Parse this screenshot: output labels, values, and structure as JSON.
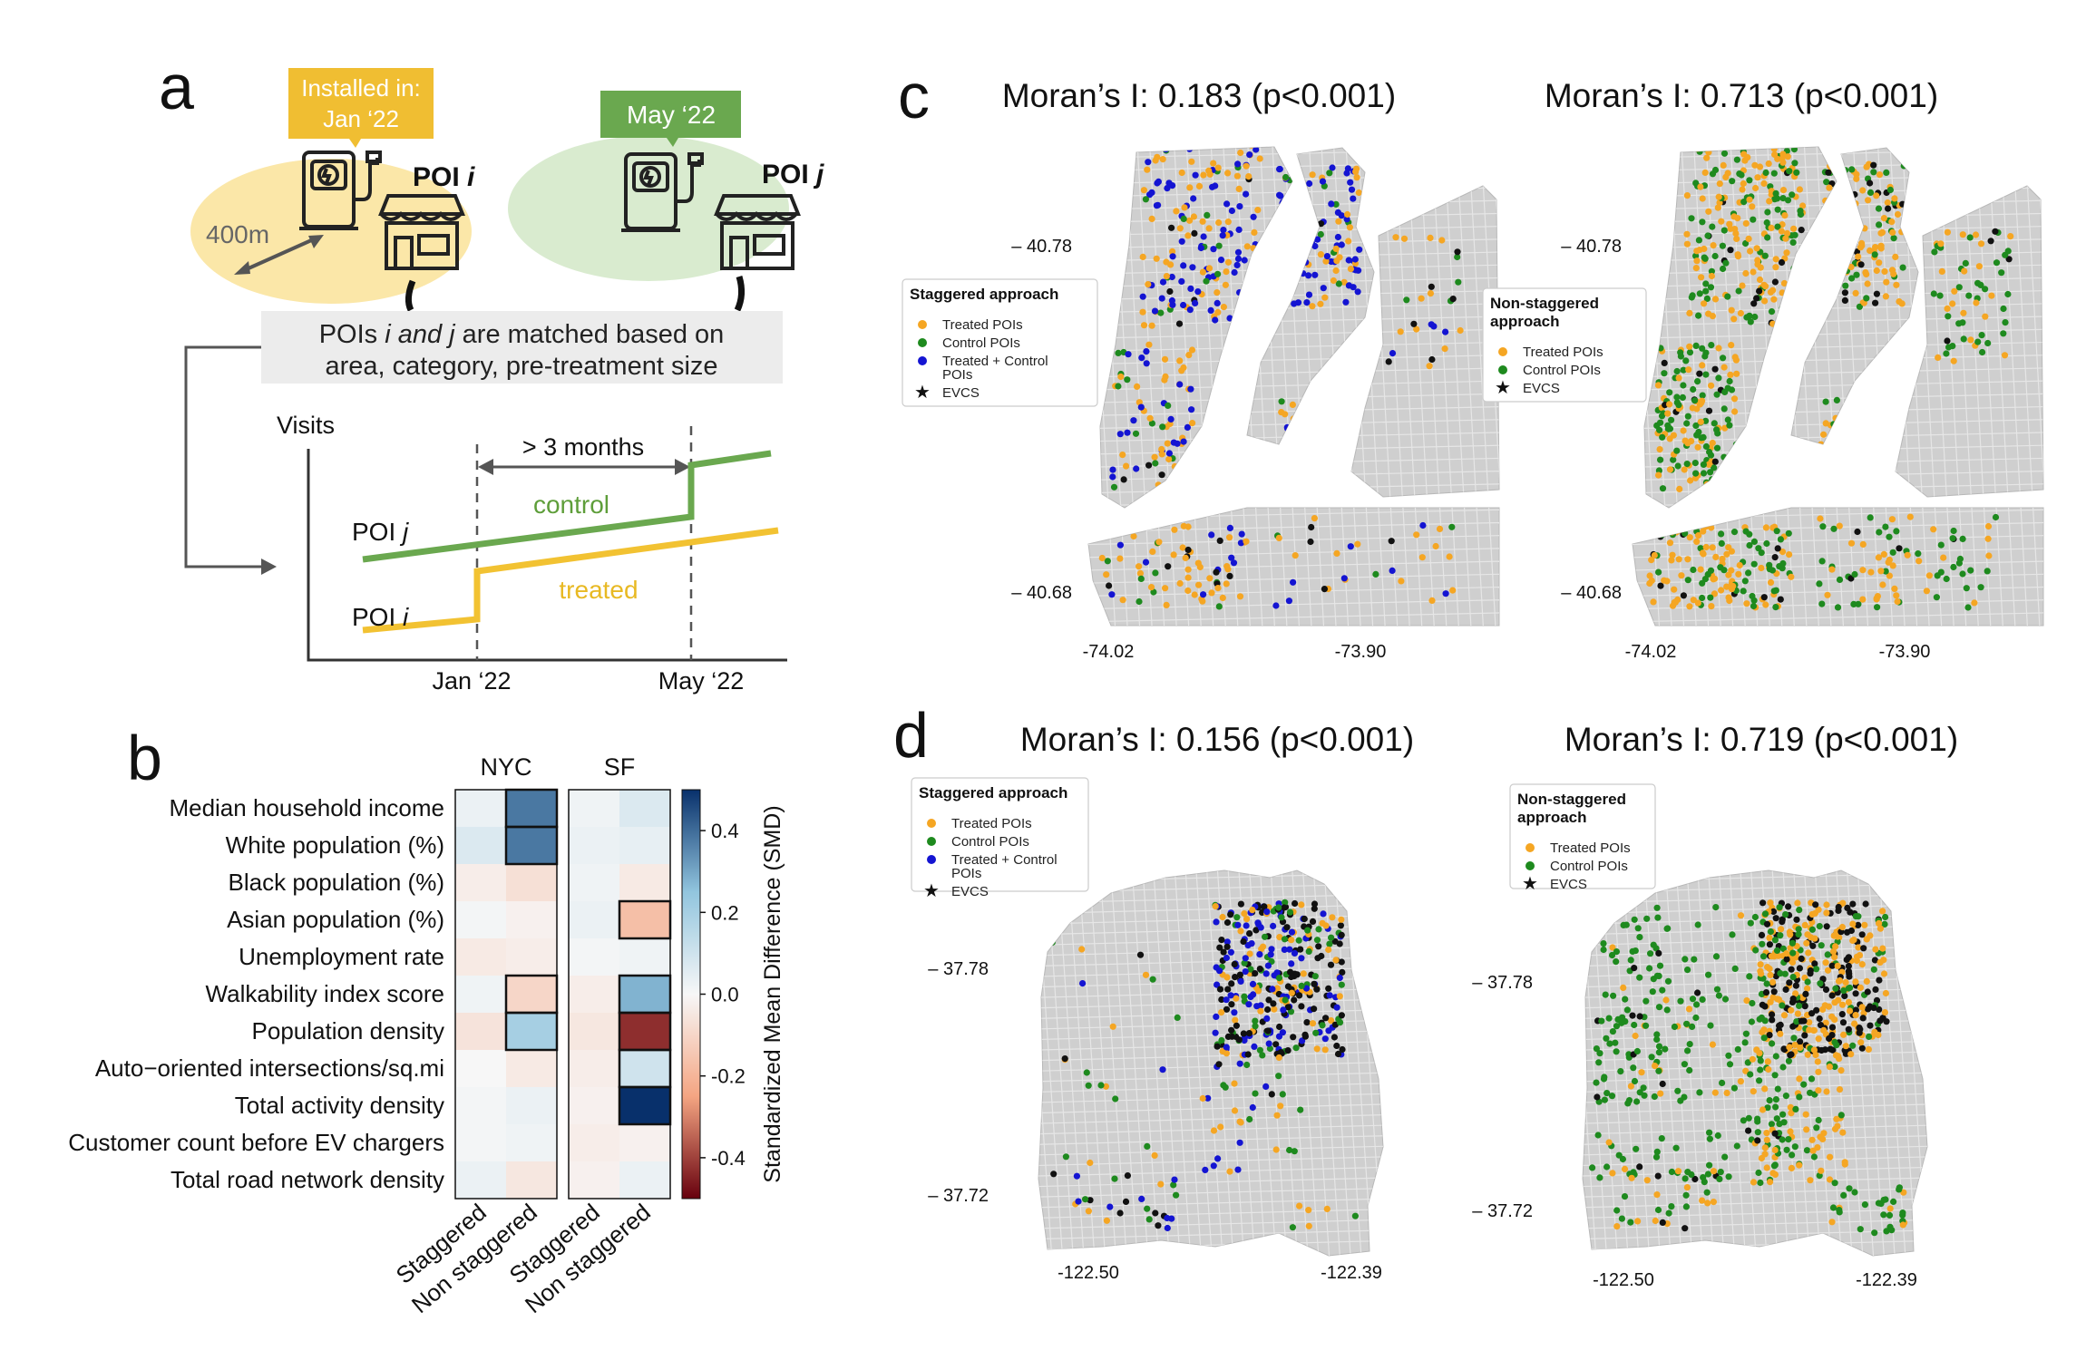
{
  "panel_labels": {
    "a": "a",
    "b": "b",
    "c": "c",
    "d": "d"
  },
  "panel_a": {
    "box1_line1": "Installed in:",
    "box1_line2": "Jan ‘22",
    "box2": "May ‘22",
    "poi_i_main": "POI ",
    "poi_i_var": "i",
    "poi_j_main": "POI ",
    "poi_j_var": "j",
    "distance": "400m",
    "matched_line1_pre": "POIs ",
    "matched_line1_em": "i and j",
    "matched_line1_post": " are matched based on",
    "matched_line2": "area, category, pre-treatment size",
    "y_label": "Visits",
    "gap_label": "> 3 months",
    "control_label": "control",
    "treated_label": "treated",
    "poi_j_line_pre": "POI ",
    "poi_j_line_var": "j",
    "poi_i_line_pre": "POI ",
    "poi_i_line_var": "i",
    "x_tick_1": "Jan ‘22",
    "x_tick_2": "May ‘22",
    "colors": {
      "treated": "#f2c232",
      "control": "#6aa84f",
      "treated_fill": "#fbe7a8",
      "control_fill": "#d9ebcf"
    }
  },
  "chart_data": [
    {
      "type": "heatmap",
      "title": "",
      "group_labels": [
        "NYC",
        "SF"
      ],
      "rows": [
        "Median household income",
        "White population (%)",
        "Black population (%)",
        "Asian population (%)",
        "Unemployment rate",
        "Walkability index score",
        "Population density",
        "Auto−oriented intersections/sq.mi",
        "Total activity density",
        "Customer count before EV chargers",
        "Total road network density"
      ],
      "columns": [
        "Staggered",
        "Non staggered",
        "Staggered",
        "Non staggered"
      ],
      "values": [
        [
          0.03,
          0.38,
          0.02,
          0.07
        ],
        [
          0.07,
          0.38,
          0.03,
          0.04
        ],
        [
          -0.03,
          -0.07,
          0.02,
          -0.04
        ],
        [
          0.01,
          -0.02,
          0.03,
          -0.17
        ],
        [
          -0.04,
          -0.03,
          0.01,
          0.02
        ],
        [
          0.02,
          -0.1,
          -0.03,
          0.28
        ],
        [
          -0.06,
          0.2,
          -0.05,
          -0.43
        ],
        [
          0.0,
          -0.04,
          -0.03,
          0.1
        ],
        [
          0.01,
          0.03,
          -0.02,
          0.5
        ],
        [
          0.01,
          0.02,
          -0.03,
          -0.02
        ],
        [
          0.03,
          -0.05,
          -0.02,
          0.03
        ]
      ],
      "boxed": [
        [
          0,
          1
        ],
        [
          1,
          1
        ],
        [
          3,
          3
        ],
        [
          5,
          1
        ],
        [
          5,
          3
        ],
        [
          6,
          1
        ],
        [
          6,
          3
        ],
        [
          7,
          3
        ],
        [
          8,
          3
        ]
      ],
      "colorbar": {
        "label": "Standardized Mean Difference (SMD)",
        "ticks": [
          0.4,
          0.2,
          0.0,
          -0.2,
          -0.4
        ],
        "tick_labels": [
          "0.4",
          "0.2",
          "0.0",
          "-0.2",
          "-0.4"
        ],
        "range": [
          -0.5,
          0.5
        ]
      }
    },
    {
      "type": "scatter",
      "panel": "c-left",
      "title": "Moran’s I: 0.183 (p<0.001)",
      "y_ticks": [
        "– 40.78",
        "– 40.68"
      ],
      "x_ticks": [
        "-74.02",
        "-73.90"
      ],
      "legend_title": "Staggered approach",
      "legend": [
        "Treated POIs",
        "Control POIs",
        "Treated + Control POIs",
        "EVCS"
      ]
    },
    {
      "type": "scatter",
      "panel": "c-right",
      "title": "Moran’s I: 0.713 (p<0.001)",
      "y_ticks": [
        "– 40.78",
        "– 40.68"
      ],
      "x_ticks": [
        "-74.02",
        "-73.90"
      ],
      "legend_title": "Non-staggered approach",
      "legend": [
        "Treated POIs",
        "Control POIs",
        "EVCS"
      ]
    },
    {
      "type": "scatter",
      "panel": "d-left",
      "title": "Moran’s I: 0.156 (p<0.001)",
      "y_ticks": [
        "– 37.78",
        "– 37.72"
      ],
      "x_ticks": [
        "-122.50",
        "-122.39"
      ],
      "legend_title": "Staggered approach",
      "legend": [
        "Treated POIs",
        "Control POIs",
        "Treated + Control POIs",
        "EVCS"
      ]
    },
    {
      "type": "scatter",
      "panel": "d-right",
      "title": "Moran’s I: 0.719 (p<0.001)",
      "y_ticks": [
        "– 37.78",
        "– 37.72"
      ],
      "x_ticks": [
        "-122.50",
        "-122.39"
      ],
      "legend_title": "Non-staggered approach",
      "legend": [
        "Treated POIs",
        "Control POIs",
        "EVCS"
      ]
    }
  ],
  "legend_lines": {
    "staggered_title": "Staggered approach",
    "nonstag_title_1": "Non-staggered",
    "nonstag_title_2": "approach",
    "treated": "Treated POIs",
    "control": "Control POIs",
    "both_1": "Treated + Control",
    "both_2": "POIs",
    "evcs": "EVCS"
  },
  "colors": {
    "treated": "#f5a623",
    "control": "#1e8a1e",
    "both": "#1414d2",
    "evcs": "#111111",
    "map_fill": "#cfcfcf"
  }
}
